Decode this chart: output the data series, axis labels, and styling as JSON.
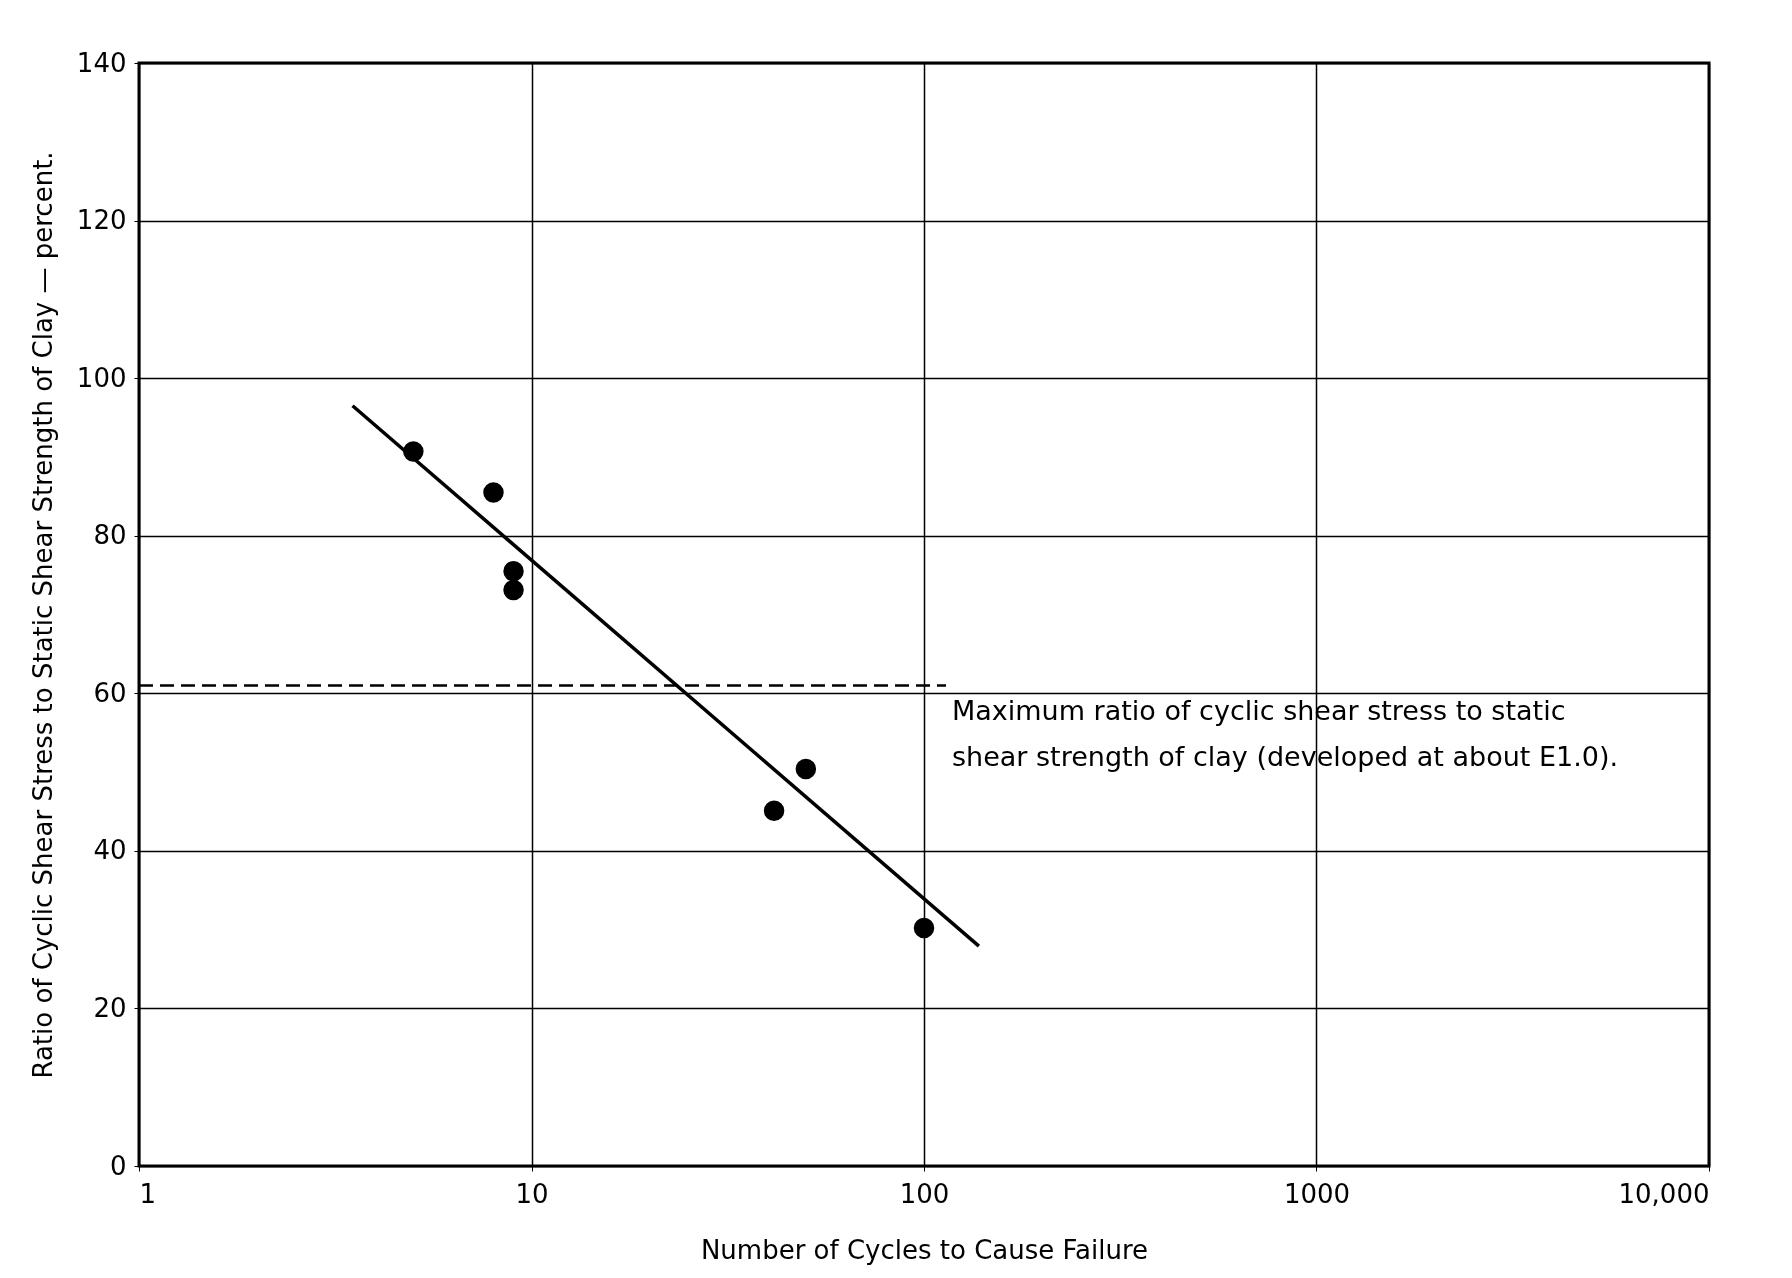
{
  "chart_data": {
    "type": "scatter",
    "xlabel": "Number of Cycles to Cause Failure",
    "ylabel": "Ratio of Cyclic Shear Stress to Static Shear Strength of Clay — percent.",
    "log": "x",
    "xlim": [
      1,
      10000
    ],
    "xticks": [
      1,
      10,
      100,
      1000,
      {
        "value": 10000,
        "label": "10,000"
      }
    ],
    "ylim": [
      0,
      140
    ],
    "yticks": [
      0,
      20,
      40,
      60,
      80,
      100,
      120,
      140
    ],
    "grid": true,
    "series": [
      {
        "type": "scatter",
        "marker": "circle",
        "color": "#000000",
        "x": [
          5,
          8,
          9,
          9,
          41.5,
          50,
          100
        ],
        "values": [
          90.7,
          85.5,
          75.5,
          73.1,
          45.1,
          50.4,
          30.2
        ]
      },
      {
        "type": "line",
        "color": "#000000",
        "line_style": "solid",
        "x": [
          3.5,
          138
        ],
        "values": [
          96.5,
          27.9
        ]
      }
    ],
    "ref_lines": [
      {
        "axis": "y",
        "value": 61,
        "label": "Maximum ratio of cyclic shear stress to static\nshear strength of clay (developed at about E1.0).",
        "line_style": "dashed",
        "color": "#000000"
      }
    ]
  }
}
